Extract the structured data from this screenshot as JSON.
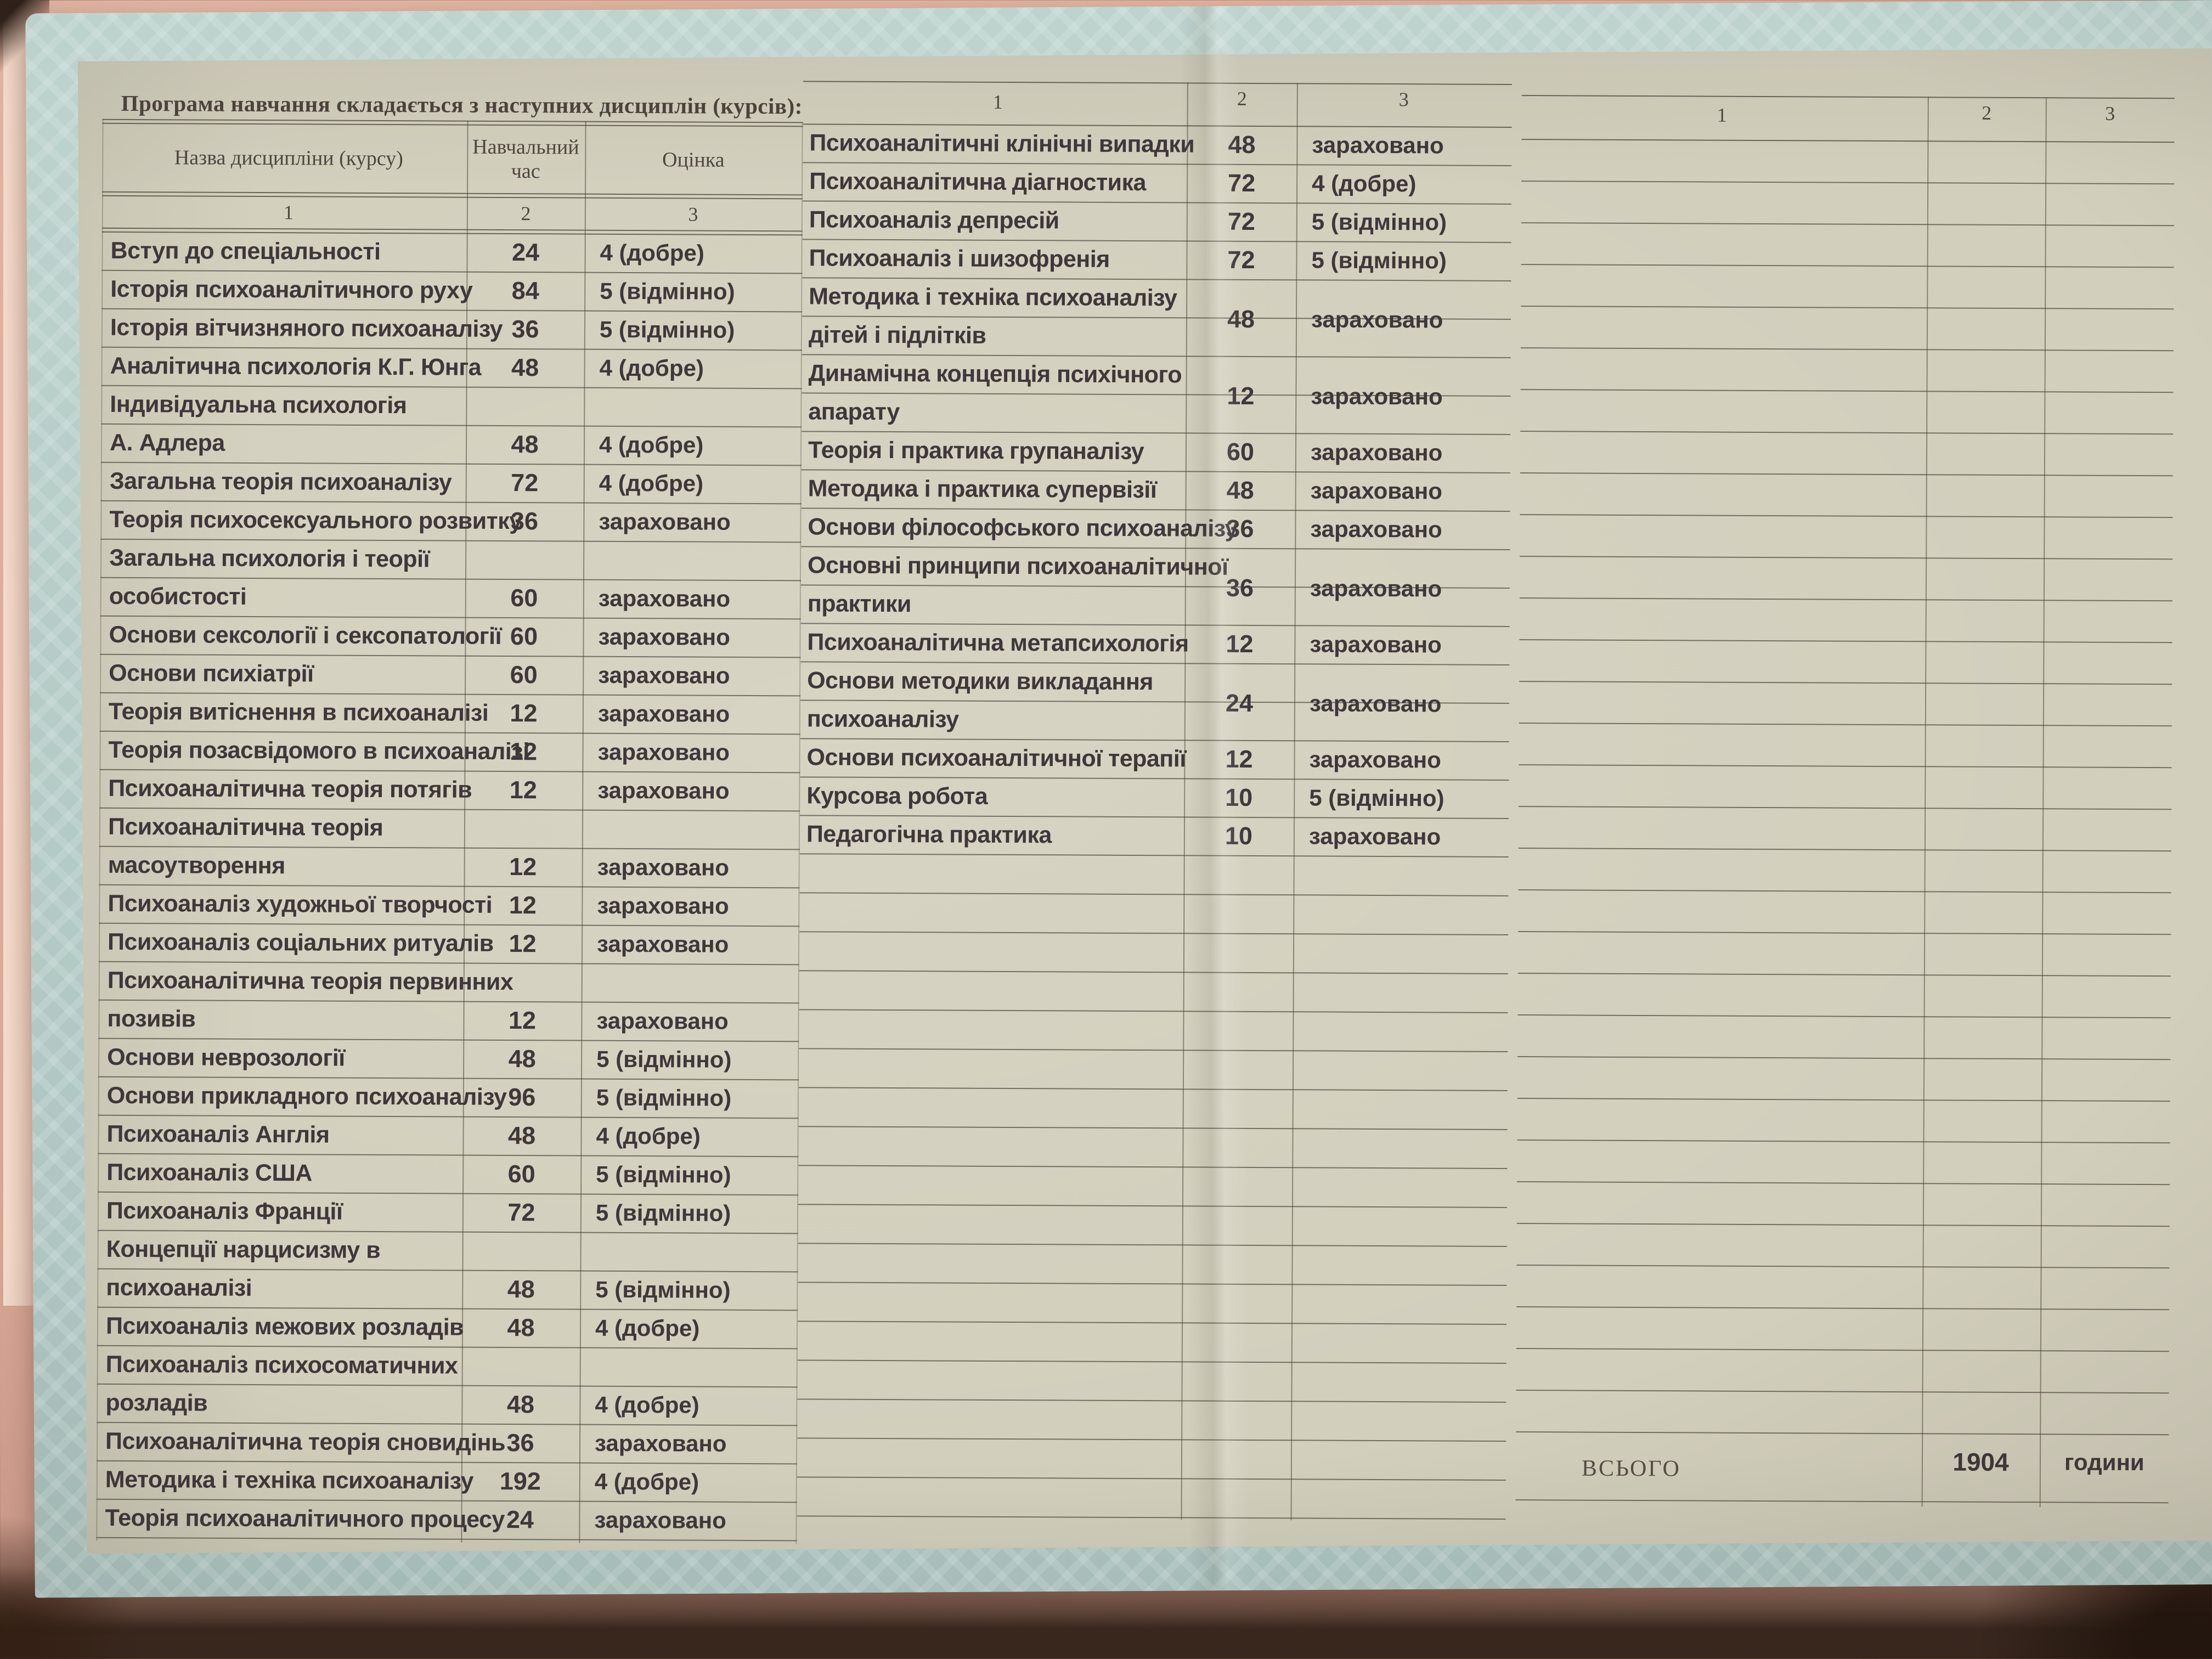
{
  "document": {
    "title": "Програма навчання складається з наступних дисциплін (курсів):"
  },
  "left_table": {
    "headers": [
      "Назва дисципліни (курсу)",
      "Навчальний час",
      "Оцінка"
    ],
    "numbers": [
      "1",
      "2",
      "3"
    ],
    "rows": [
      {
        "n": "Вступ до спеціальності",
        "h": "24",
        "g": "4 (добре)"
      },
      {
        "n": "Історія психоаналітичного руху",
        "h": "84",
        "g": "5 (відмінно)"
      },
      {
        "n": "Історія вітчизняного психоаналізу",
        "h": "36",
        "g": "5 (відмінно)"
      },
      {
        "n": "Аналітична психологія К.Г. Юнга",
        "h": "48",
        "g": "4 (добре)"
      },
      {
        "n": "Індивідуальна психологія",
        "h": "",
        "g": ""
      },
      {
        "n": "А. Адлера",
        "h": "48",
        "g": "4 (добре)"
      },
      {
        "n": "Загальна теорія психоаналізу",
        "h": "72",
        "g": "4 (добре)"
      },
      {
        "n": "Теорія психосексуального розвитку",
        "h": "36",
        "g": "зараховано"
      },
      {
        "n": "Загальна психологія і теорії",
        "h": "",
        "g": ""
      },
      {
        "n": "особистості",
        "h": "60",
        "g": "зараховано"
      },
      {
        "n": "Основи сексології і сексопатології",
        "h": "60",
        "g": "зараховано"
      },
      {
        "n": "Основи психіатрії",
        "h": "60",
        "g": "зараховано"
      },
      {
        "n": "Теорія витіснення в психоаналізі",
        "h": "12",
        "g": "зараховано"
      },
      {
        "n": "Теорія позасвідомого в психоаналізі",
        "h": "12",
        "g": "зараховано"
      },
      {
        "n": "Психоаналітична теорія потягів",
        "h": "12",
        "g": "зараховано"
      },
      {
        "n": "Психоаналітична теорія",
        "h": "",
        "g": ""
      },
      {
        "n": "масоутворення",
        "h": "12",
        "g": "зараховано"
      },
      {
        "n": "Психоаналіз художньої творчості",
        "h": "12",
        "g": "зараховано"
      },
      {
        "n": "Психоаналіз соціальних ритуалів",
        "h": "12",
        "g": "зараховано"
      },
      {
        "n": "Психоаналітична теорія первинних",
        "h": "",
        "g": ""
      },
      {
        "n": "позивів",
        "h": "12",
        "g": "зараховано"
      },
      {
        "n": "Основи неврозології",
        "h": "48",
        "g": "5 (відмінно)"
      },
      {
        "n": "Основи прикладного психоаналізу",
        "h": "96",
        "g": "5 (відмінно)"
      },
      {
        "n": "Психоаналіз Англія",
        "h": "48",
        "g": "4 (добре)"
      },
      {
        "n": "Психоаналіз США",
        "h": "60",
        "g": "5 (відмінно)"
      },
      {
        "n": "Психоаналіз Франції",
        "h": "72",
        "g": "5 (відмінно)"
      },
      {
        "n": "Концепції нарцисизму в",
        "h": "",
        "g": ""
      },
      {
        "n": "психоаналізі",
        "h": "48",
        "g": "5 (відмінно)"
      },
      {
        "n": "Психоаналіз межових розладів",
        "h": "48",
        "g": "4 (добре)"
      },
      {
        "n": "Психоаналіз психосоматичних",
        "h": "",
        "g": ""
      },
      {
        "n": "розладів",
        "h": "48",
        "g": "4 (добре)"
      },
      {
        "n": "Психоаналітична теорія сновидінь",
        "h": "36",
        "g": "зараховано"
      },
      {
        "n": "Методика і техніка психоаналізу",
        "h": "192",
        "g": "4 (добре)"
      },
      {
        "n": "Теорія психоаналітичного процесу",
        "h": "24",
        "g": "зараховано"
      }
    ]
  },
  "middle_table": {
    "numbers": [
      "1",
      "2",
      "3"
    ],
    "rows": [
      {
        "n": "Психоаналітичні клінічні випадки",
        "h": "48",
        "g": "зараховано"
      },
      {
        "n": "Психоаналітична діагностика",
        "h": "72",
        "g": "4 (добре)"
      },
      {
        "n": "Психоаналіз депресій",
        "h": "72",
        "g": "5 (відмінно)"
      },
      {
        "n": "Психоаналіз і шизофренія",
        "h": "72",
        "g": "5 (відмінно)"
      },
      {
        "n": "Методика і техніка психоаналізу",
        "h": "",
        "g": ""
      },
      {
        "n": "дітей і підлітків",
        "h": "48",
        "g": "зараховано",
        "r": true
      },
      {
        "n": "Динамічна концепція психічного",
        "h": "",
        "g": ""
      },
      {
        "n": "апарату",
        "h": "12",
        "g": "зараховано",
        "r": true
      },
      {
        "n": "Теорія і практика групаналізу",
        "h": "60",
        "g": "зараховано"
      },
      {
        "n": "Методика і практика супервізії",
        "h": "48",
        "g": "зараховано"
      },
      {
        "n": "Основи філософського психоаналізу",
        "h": "36",
        "g": "зараховано"
      },
      {
        "n": "Основні принципи психоаналітичної",
        "h": "",
        "g": ""
      },
      {
        "n": "практики",
        "h": "36",
        "g": "зараховано",
        "r": true
      },
      {
        "n": "Психоаналітична метапсихологія",
        "h": "12",
        "g": "зараховано"
      },
      {
        "n": "Основи методики викладання",
        "h": "",
        "g": ""
      },
      {
        "n": "психоаналізу",
        "h": "24",
        "g": "зараховано",
        "r": true
      },
      {
        "n": "Основи психоаналітичної терапії",
        "h": "12",
        "g": "зараховано"
      },
      {
        "n": "Курсова робота",
        "h": "10",
        "g": "5 (відмінно)"
      },
      {
        "n": "Педагогічна практика",
        "h": "10",
        "g": "зараховано"
      }
    ],
    "empty_rows": 17
  },
  "right_table": {
    "numbers": [
      "1",
      "2",
      "3"
    ],
    "empty_rows": 31,
    "total": {
      "label": "ВСЬОГО",
      "hours": "1904",
      "unit": "години"
    }
  },
  "colors": {
    "paper_panel": "#d3cfbd",
    "sheet_border": "#b5cbc6",
    "background": "#dcab99",
    "ink": "#3f3739",
    "ruled_line": "#4d463a"
  }
}
